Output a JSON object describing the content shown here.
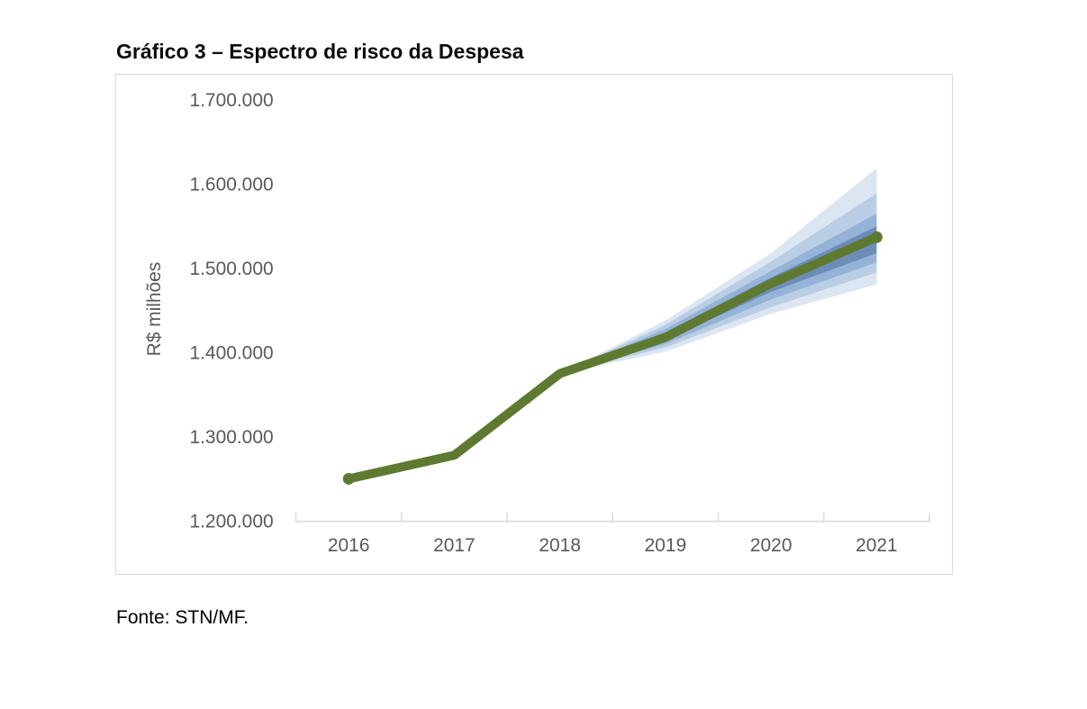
{
  "source": "Fonte: STN/MF.",
  "chart_data": {
    "type": "area",
    "title": "Gráfico 3 – Espectro de risco da Despesa",
    "subtitle": "",
    "ylabel": "R$ milhões",
    "xlabel": "",
    "x": [
      "2016",
      "2017",
      "2018",
      "2019",
      "2020",
      "2021"
    ],
    "ylim": [
      1200000,
      1700000
    ],
    "yticks": [
      1200000,
      1300000,
      1400000,
      1500000,
      1600000,
      1700000
    ],
    "ytick_labels": [
      "1.200.000",
      "1.300.000",
      "1.400.000",
      "1.500.000",
      "1.600.000",
      "1.700.000"
    ],
    "grid": false,
    "legend": "none",
    "series": [
      {
        "name": "baseline",
        "color": "#5e7a31",
        "values": [
          1250000,
          1278000,
          1375000,
          1418000,
          1482000,
          1537000
        ]
      }
    ],
    "bands": [
      {
        "name": "fan-band-outer",
        "color": "#dce6f2",
        "start_index": 2,
        "upper": [
          1375000,
          1438000,
          1518000,
          1619000
        ],
        "lower": [
          1375000,
          1401000,
          1446000,
          1481000
        ]
      },
      {
        "name": "fan-band-mid-outer",
        "color": "#b9cde4",
        "start_index": 2,
        "upper": [
          1375000,
          1433000,
          1508000,
          1589000
        ],
        "lower": [
          1375000,
          1406000,
          1454000,
          1495000
        ]
      },
      {
        "name": "fan-band-mid-inner",
        "color": "#95b3d7",
        "start_index": 2,
        "upper": [
          1375000,
          1428000,
          1497000,
          1565000
        ],
        "lower": [
          1375000,
          1410000,
          1463000,
          1507000
        ]
      },
      {
        "name": "fan-band-inner",
        "color": "#6e8cb8",
        "start_index": 2,
        "upper": [
          1375000,
          1424000,
          1489000,
          1550000
        ],
        "lower": [
          1375000,
          1415000,
          1472000,
          1518000
        ]
      }
    ],
    "axis_color": "#d9d9d9",
    "tick_label_color": "#595959"
  }
}
